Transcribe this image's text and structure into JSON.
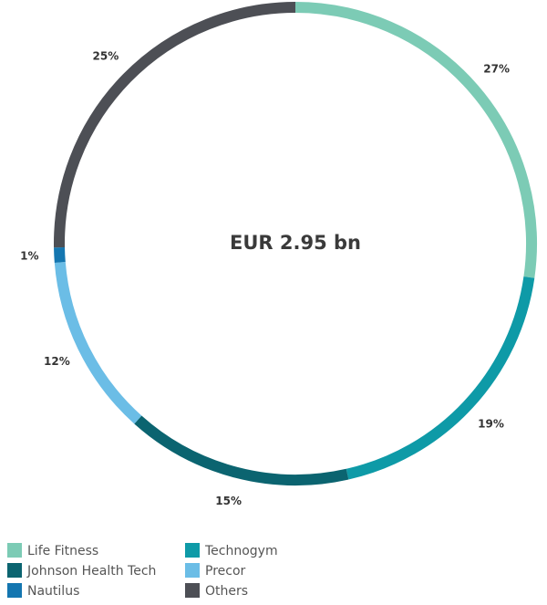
{
  "chart_data": {
    "type": "pie",
    "center_label": "EUR 2.95 bn",
    "categories": [
      "Life Fitness",
      "Technogym",
      "Johnson Health Tech",
      "Precor",
      "Nautilus",
      "Others"
    ],
    "values": [
      27,
      19,
      15,
      12,
      1,
      25
    ],
    "value_labels": [
      "27%",
      "19%",
      "15%",
      "12%",
      "1%",
      "25%"
    ],
    "colors": [
      "#7ccbb5",
      "#0e9aa7",
      "#0b6470",
      "#6bbde6",
      "#1476b0",
      "#4d4f55"
    ],
    "legend": "bottom"
  }
}
